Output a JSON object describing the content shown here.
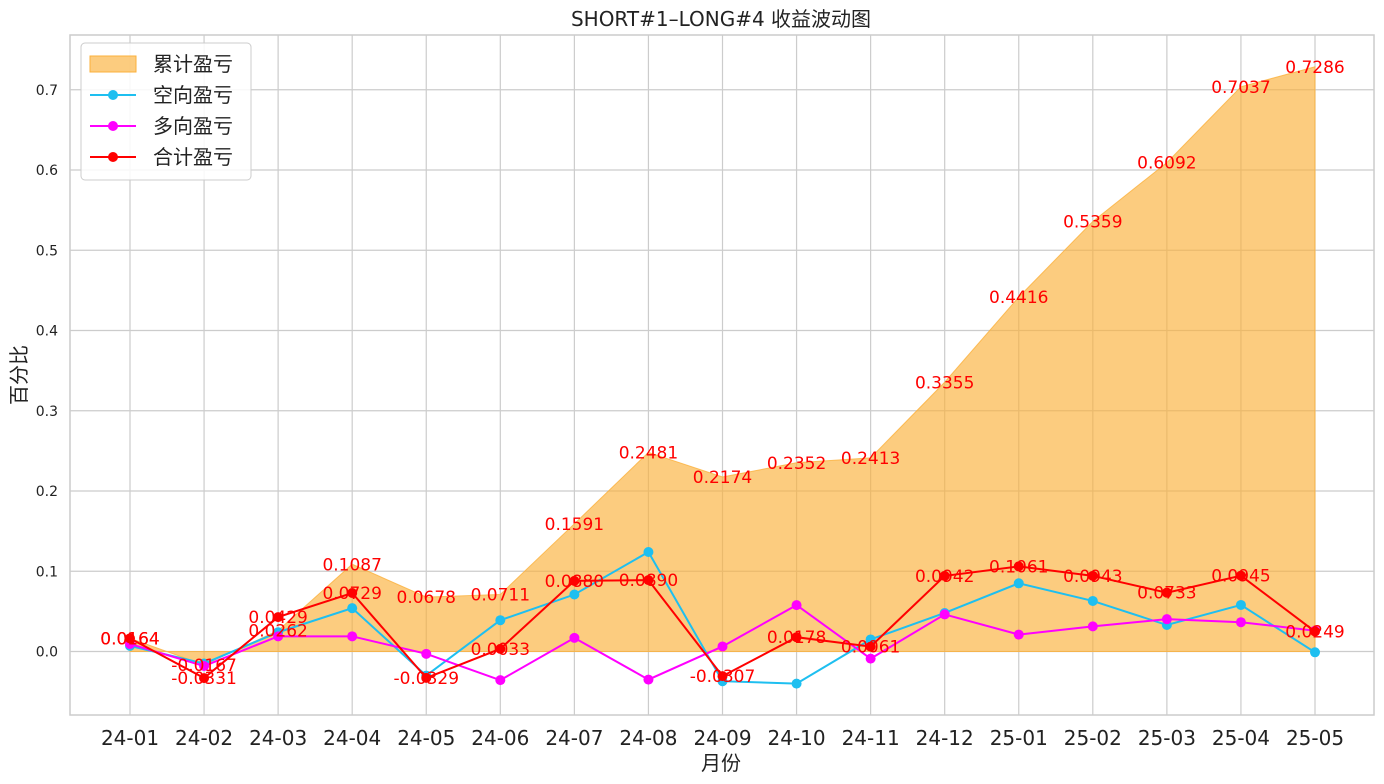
{
  "chart_data": {
    "type": "line",
    "title": "SHORT#1–LONG#4 收益波动图",
    "xlabel": "月份",
    "ylabel": "百分比",
    "categories": [
      "24-01",
      "24-02",
      "24-03",
      "24-04",
      "24-05",
      "24-06",
      "24-07",
      "24-08",
      "24-09",
      "24-10",
      "24-11",
      "24-12",
      "25-01",
      "25-02",
      "25-03",
      "25-04",
      "25-05"
    ],
    "ylim": [
      -0.08,
      0.765
    ],
    "yticks": [
      "0.0",
      "0.1",
      "0.2",
      "0.3",
      "0.4",
      "0.5",
      "0.6",
      "0.7"
    ],
    "grid": true,
    "legend_position": "top-left",
    "series": [
      {
        "name": "累计盈亏",
        "kind": "area",
        "color": "#fbb03b",
        "values": [
          0.0164,
          -0.0167,
          0.0262,
          0.1087,
          0.0678,
          0.0711,
          0.1591,
          0.2481,
          0.2174,
          0.2352,
          0.2413,
          0.3355,
          0.4416,
          0.5359,
          0.6092,
          0.7037,
          0.7286
        ],
        "labels": [
          "0.0164",
          "-0.0167",
          "0.0262",
          "0.1087",
          "0.0678",
          "0.0711",
          "0.1591",
          "0.2481",
          "0.2174",
          "0.2352",
          "0.2413",
          "0.3355",
          "0.4416",
          "0.5359",
          "0.6092",
          "0.7037",
          "0.7286"
        ]
      },
      {
        "name": "空向盈亏",
        "kind": "line",
        "color": "#1ebff0",
        "values": [
          0.007,
          -0.015,
          0.024,
          0.054,
          -0.03,
          0.039,
          0.071,
          0.124,
          -0.037,
          -0.04,
          0.015,
          0.048,
          0.085,
          0.063,
          0.033,
          0.058,
          -0.001
        ]
      },
      {
        "name": "多向盈亏",
        "kind": "line",
        "color": "#ff00ff",
        "values": [
          0.0094,
          -0.0181,
          0.0189,
          0.0189,
          -0.0029,
          -0.0357,
          0.017,
          -0.035,
          0.0063,
          0.0578,
          -0.0089,
          0.0462,
          0.0211,
          0.0313,
          0.0403,
          0.0365,
          0.0259
        ]
      },
      {
        "name": "合计盈亏",
        "kind": "line",
        "color": "#ff0000",
        "values": [
          0.0164,
          -0.0331,
          0.0429,
          0.0729,
          -0.0329,
          0.0033,
          0.088,
          0.089,
          -0.0307,
          0.0178,
          0.0061,
          0.0942,
          0.1061,
          0.0943,
          0.0733,
          0.0945,
          0.0249
        ],
        "labels": [
          "0.0164",
          "-0.0331",
          "0.0429",
          "0.0729",
          "-0.0329",
          "0.0033",
          "0.0880",
          "0.0890",
          "-0.0307",
          "0.0178",
          "0.0061",
          "0.0942",
          "0.1061",
          "0.0943",
          "0.0733",
          "0.0945",
          "0.0249"
        ]
      }
    ],
    "colors": {
      "label": "#ff0000",
      "grid": "#cccccc",
      "frame": "#cccccc"
    }
  }
}
